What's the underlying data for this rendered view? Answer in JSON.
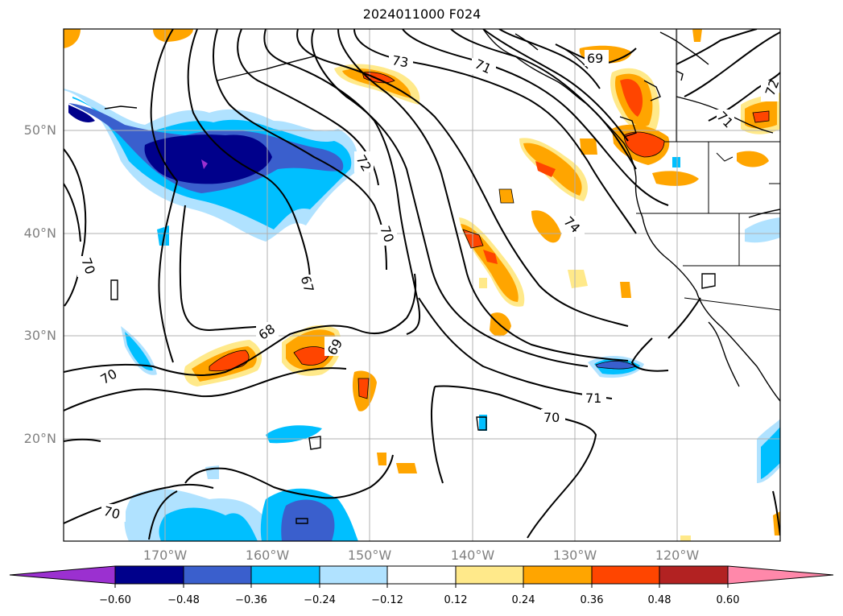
{
  "title": "2024011000 F024",
  "latitude_labels": [
    "50°N",
    "40°N",
    "30°N",
    "20°N"
  ],
  "longitude_labels": [
    "170°W",
    "160°W",
    "150°W",
    "140°W",
    "130°W",
    "120°W"
  ],
  "contour_labels": [
    "73",
    "71",
    "69",
    "72",
    "71",
    "72",
    "70",
    "74",
    "70",
    "67",
    "68",
    "69",
    "70",
    "71",
    "70",
    "70"
  ],
  "colorbar": {
    "ticks": [
      "−0.60",
      "−0.48",
      "−0.36",
      "−0.24",
      "−0.12",
      "0.12",
      "0.24",
      "0.36",
      "0.48",
      "0.60"
    ],
    "colors": [
      "#9b30d0",
      "#00008b",
      "#3a5fcd",
      "#00bfff",
      "#b0e2ff",
      "#ffffff",
      "#ffe98a",
      "#ffa500",
      "#ff4500",
      "#b22222",
      "#ff88aa"
    ]
  }
}
